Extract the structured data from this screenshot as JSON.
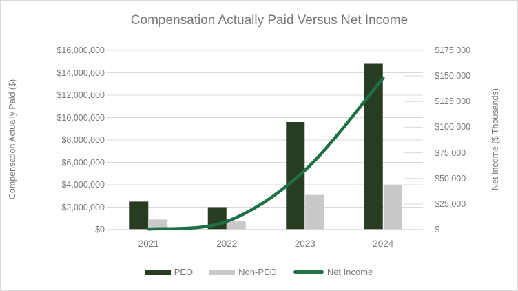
{
  "title": "Compensation Actually Paid Versus Net Income",
  "chart_data": {
    "type": "combo_bar_line",
    "categories": [
      "2021",
      "2022",
      "2023",
      "2024"
    ],
    "series": [
      {
        "name": "PEO",
        "type": "bar",
        "axis": "left",
        "color": "#273c20",
        "values": [
          2500000,
          2000000,
          9600000,
          14800000
        ]
      },
      {
        "name": "Non-PEO",
        "type": "bar",
        "axis": "left",
        "color": "#c9c9c9",
        "values": [
          900000,
          750000,
          3100000,
          4000000
        ]
      },
      {
        "name": "Net Income",
        "type": "line",
        "axis": "right",
        "color": "#1e7145",
        "values": [
          500,
          8000,
          58000,
          148000
        ]
      }
    ],
    "left_axis": {
      "title": "Compensation Actually Paid ($)",
      "min": 0,
      "max": 16000000,
      "tick_step": 2000000,
      "tick_labels": [
        "$16,000,000",
        "$14,000,000",
        "$12,000,000",
        "$10,000,000",
        "$8,000,000",
        "$6,000,000",
        "$4,000,000",
        "$2,000,000",
        "$0"
      ]
    },
    "right_axis": {
      "title": "Net Income ($ Thousands)",
      "min": 0,
      "max": 175000,
      "tick_step": 25000,
      "tick_labels": [
        "$175,000",
        "$150,000",
        "$125,000",
        "$100,000",
        "$75,000",
        "$50,000",
        "$25,000",
        "$-"
      ]
    },
    "x_axis": {
      "tick_labels": [
        "2021",
        "2022",
        "2023",
        "2024"
      ]
    },
    "legend": {
      "position": "bottom"
    },
    "grid": "horizontal-major",
    "line_smoothing": true,
    "colors": {
      "grid": "#d9d9d9",
      "axis_line": "#d9d9d9",
      "text": "#7a7a7a",
      "title_text": "#777777",
      "background": "#ffffff",
      "border": "#d9d9d9"
    }
  }
}
